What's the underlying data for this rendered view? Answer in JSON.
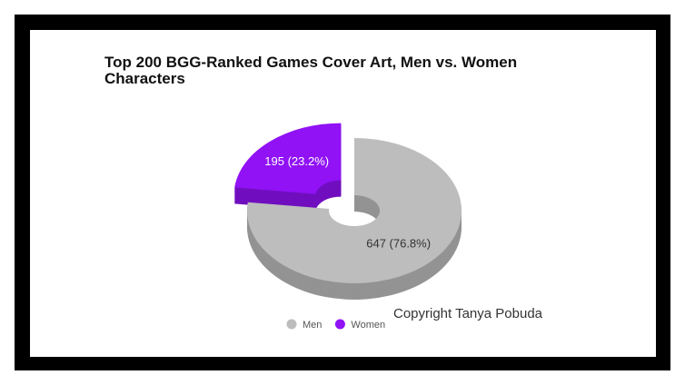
{
  "chart_data": {
    "type": "pie",
    "title": "Top 200 BGG-Ranked Games Cover Art, Men vs. Women Characters",
    "categories": [
      "Men",
      "Women"
    ],
    "values": [
      647,
      195
    ],
    "value_labels": [
      "647 (76.8%)",
      "195 (23.2%)"
    ],
    "colors": [
      "#bdbdbd",
      "#9012f5"
    ],
    "annotation": "Copyright Tanya Pobuda"
  }
}
